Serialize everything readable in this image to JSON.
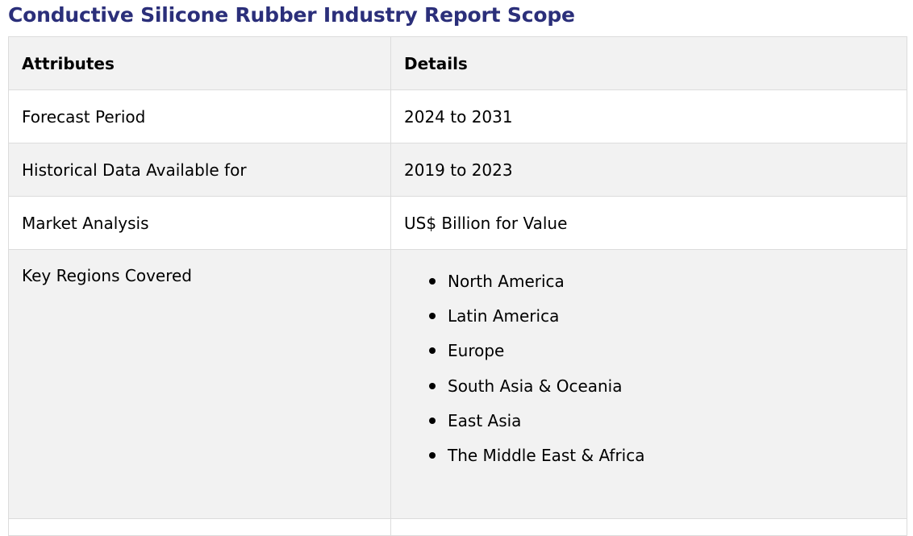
{
  "title": "Conductive Silicone Rubber Industry Report Scope",
  "table": {
    "headers": [
      "Attributes",
      "Details"
    ],
    "rows": [
      {
        "attribute": "Forecast Period",
        "detail": "2024 to 2031"
      },
      {
        "attribute": "Historical Data Available for",
        "detail": "2019 to 2023"
      },
      {
        "attribute": "Market Analysis",
        "detail": "US$ Billion for Value"
      }
    ],
    "regions_row": {
      "attribute": "Key Regions Covered",
      "items": [
        "North America",
        "Latin America",
        "Europe",
        "South Asia & Oceania",
        "East Asia",
        "The Middle East & Africa"
      ]
    }
  },
  "colors": {
    "title": "#2b2f7a",
    "shaded_row": "#f2f2f2",
    "border": "#dcdcdc"
  }
}
